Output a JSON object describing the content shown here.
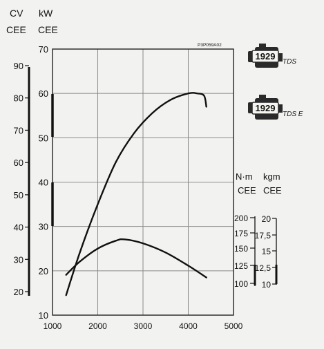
{
  "chart_data": {
    "type": "line",
    "code": "P3P059A02",
    "x": {
      "ticks": [
        "1000",
        "2000",
        "3000",
        "4000",
        "5000"
      ],
      "range": [
        1000,
        5000
      ]
    },
    "left_axes": {
      "cv": {
        "label": [
          "CV",
          "CEE"
        ],
        "ticks": [
          "20",
          "30",
          "40",
          "50",
          "60",
          "70",
          "80",
          "90"
        ]
      },
      "kw": {
        "label": [
          "kW",
          "CEE"
        ],
        "ticks": [
          "10",
          "20",
          "30",
          "40",
          "50",
          "60",
          "70"
        ],
        "range": [
          10,
          70
        ]
      }
    },
    "right_axes": {
      "nm": {
        "label": [
          "N·m",
          "CEE"
        ],
        "ticks": [
          "200",
          "175",
          "150",
          "125",
          "100"
        ]
      },
      "kgm": {
        "label": [
          "kgm",
          "CEE"
        ],
        "ticks": [
          "20",
          "17,5",
          "15",
          "12,5",
          "10"
        ]
      }
    },
    "series": [
      {
        "role": "power",
        "unit": "kW",
        "points": [
          [
            1300,
            14.5
          ],
          [
            1600,
            24
          ],
          [
            2000,
            35
          ],
          [
            2400,
            44.5
          ],
          [
            2800,
            51
          ],
          [
            3200,
            55.5
          ],
          [
            3600,
            58.5
          ],
          [
            4000,
            60
          ],
          [
            4200,
            60
          ],
          [
            4350,
            59.5
          ],
          [
            4400,
            57
          ]
        ]
      },
      {
        "role": "torque",
        "unit": "kgm",
        "points": [
          [
            1300,
            11.4
          ],
          [
            1600,
            13.4
          ],
          [
            2000,
            15.4
          ],
          [
            2400,
            16.6
          ],
          [
            2600,
            16.8
          ],
          [
            3000,
            16.2
          ],
          [
            3500,
            14.8
          ],
          [
            4000,
            12.8
          ],
          [
            4400,
            11.0
          ]
        ]
      }
    ],
    "legend": [
      {
        "engine": "1929",
        "label": "TDS"
      },
      {
        "engine": "1929",
        "label": "TDS E"
      }
    ],
    "grid": true
  }
}
